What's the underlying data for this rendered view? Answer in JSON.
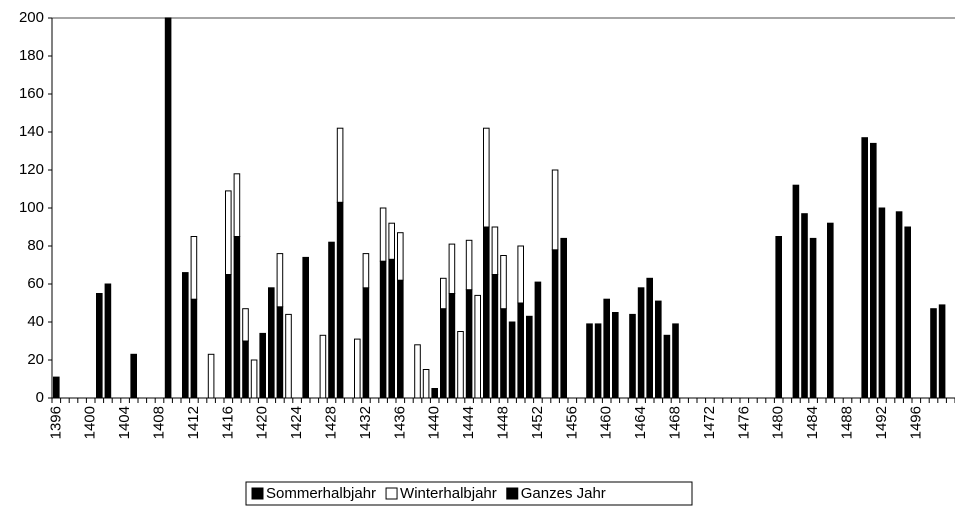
{
  "chart_data": {
    "type": "bar",
    "stacked": true,
    "categories": [
      "1396",
      null,
      null,
      null,
      "1400",
      null,
      null,
      null,
      "1404",
      null,
      null,
      null,
      "1408",
      null,
      null,
      null,
      "1412",
      null,
      null,
      null,
      "1416",
      null,
      null,
      null,
      "1420",
      null,
      null,
      null,
      "1424",
      null,
      null,
      null,
      "1428",
      null,
      null,
      null,
      "1432",
      null,
      null,
      null,
      "1436",
      null,
      null,
      null,
      "1440",
      null,
      null,
      null,
      "1444",
      null,
      null,
      null,
      "1448",
      null,
      null,
      null,
      "1452",
      null,
      null,
      null,
      "1456",
      null,
      null,
      null,
      "1460",
      null,
      null,
      null,
      "1464",
      null,
      null,
      null,
      "1468",
      null,
      null,
      null,
      "1472",
      null,
      null,
      null,
      "1476",
      null,
      null,
      null,
      "1480",
      null,
      null,
      null,
      "1484",
      null,
      null,
      null,
      "1488",
      null,
      null,
      null,
      "1492",
      null,
      null,
      null,
      "1496",
      null,
      null,
      null,
      null
    ],
    "series": [
      {
        "name": "Sommerhalbjahr",
        "color": "#000000",
        "values": [
          null,
          null,
          null,
          null,
          null,
          null,
          null,
          null,
          null,
          null,
          null,
          null,
          null,
          null,
          null,
          null,
          52,
          null,
          null,
          null,
          65,
          85,
          30,
          null,
          null,
          null,
          48,
          null,
          null,
          null,
          null,
          null,
          null,
          103,
          null,
          null,
          58,
          null,
          72,
          73,
          62,
          null,
          null,
          null,
          null,
          47,
          55,
          null,
          57,
          null,
          90,
          65,
          47,
          null,
          50,
          null,
          null,
          null,
          78,
          null,
          null,
          null,
          null,
          null,
          null,
          null,
          null,
          null,
          null,
          null,
          null,
          null,
          null,
          null,
          null,
          null,
          null,
          null,
          null,
          null,
          null,
          null,
          null,
          null,
          null,
          null,
          null,
          null,
          null,
          null,
          null,
          null,
          null,
          null,
          null,
          null,
          null,
          null,
          null,
          null,
          null,
          null,
          null,
          null,
          null
        ]
      },
      {
        "name": "Winterhalbjahr",
        "color": "#ffffff",
        "values": [
          null,
          null,
          null,
          null,
          null,
          null,
          null,
          null,
          null,
          null,
          null,
          null,
          null,
          null,
          null,
          null,
          33,
          null,
          23,
          null,
          44,
          33,
          17,
          20,
          null,
          null,
          28,
          44,
          null,
          null,
          null,
          33,
          null,
          39,
          null,
          31,
          18,
          null,
          28,
          19,
          25,
          null,
          28,
          15,
          null,
          16,
          26,
          35,
          26,
          54,
          52,
          25,
          28,
          null,
          30,
          null,
          null,
          null,
          42,
          null,
          null,
          null,
          null,
          null,
          null,
          null,
          null,
          null,
          null,
          null,
          null,
          null,
          null,
          null,
          null,
          null,
          null,
          null,
          null,
          null,
          null,
          null,
          null,
          null,
          null,
          null,
          null,
          null,
          null,
          null,
          null,
          null,
          null,
          null,
          null,
          null,
          null,
          null,
          null,
          null,
          null,
          null,
          null,
          null,
          null
        ]
      },
      {
        "name": "Ganzes Jahr",
        "color": "#000000",
        "values": [
          11,
          null,
          null,
          null,
          null,
          55,
          60,
          null,
          null,
          23,
          null,
          null,
          null,
          200,
          null,
          66,
          null,
          null,
          null,
          null,
          null,
          null,
          null,
          null,
          34,
          58,
          null,
          null,
          null,
          74,
          null,
          null,
          82,
          null,
          null,
          null,
          null,
          null,
          null,
          null,
          null,
          null,
          null,
          null,
          5,
          null,
          null,
          null,
          null,
          null,
          null,
          null,
          null,
          40,
          null,
          43,
          61,
          null,
          null,
          84,
          null,
          null,
          39,
          39,
          52,
          45,
          null,
          44,
          58,
          63,
          51,
          33,
          39,
          null,
          null,
          null,
          null,
          null,
          null,
          null,
          null,
          null,
          null,
          null,
          85,
          null,
          112,
          97,
          84,
          null,
          92,
          null,
          null,
          null,
          137,
          134,
          100,
          null,
          98,
          90,
          null,
          null,
          47,
          49,
          null
        ]
      }
    ],
    "ylim": [
      0,
      200
    ],
    "yticks": [
      0,
      20,
      40,
      60,
      80,
      100,
      120,
      140,
      160,
      180,
      200
    ],
    "grid": false,
    "legend": "bottom"
  }
}
